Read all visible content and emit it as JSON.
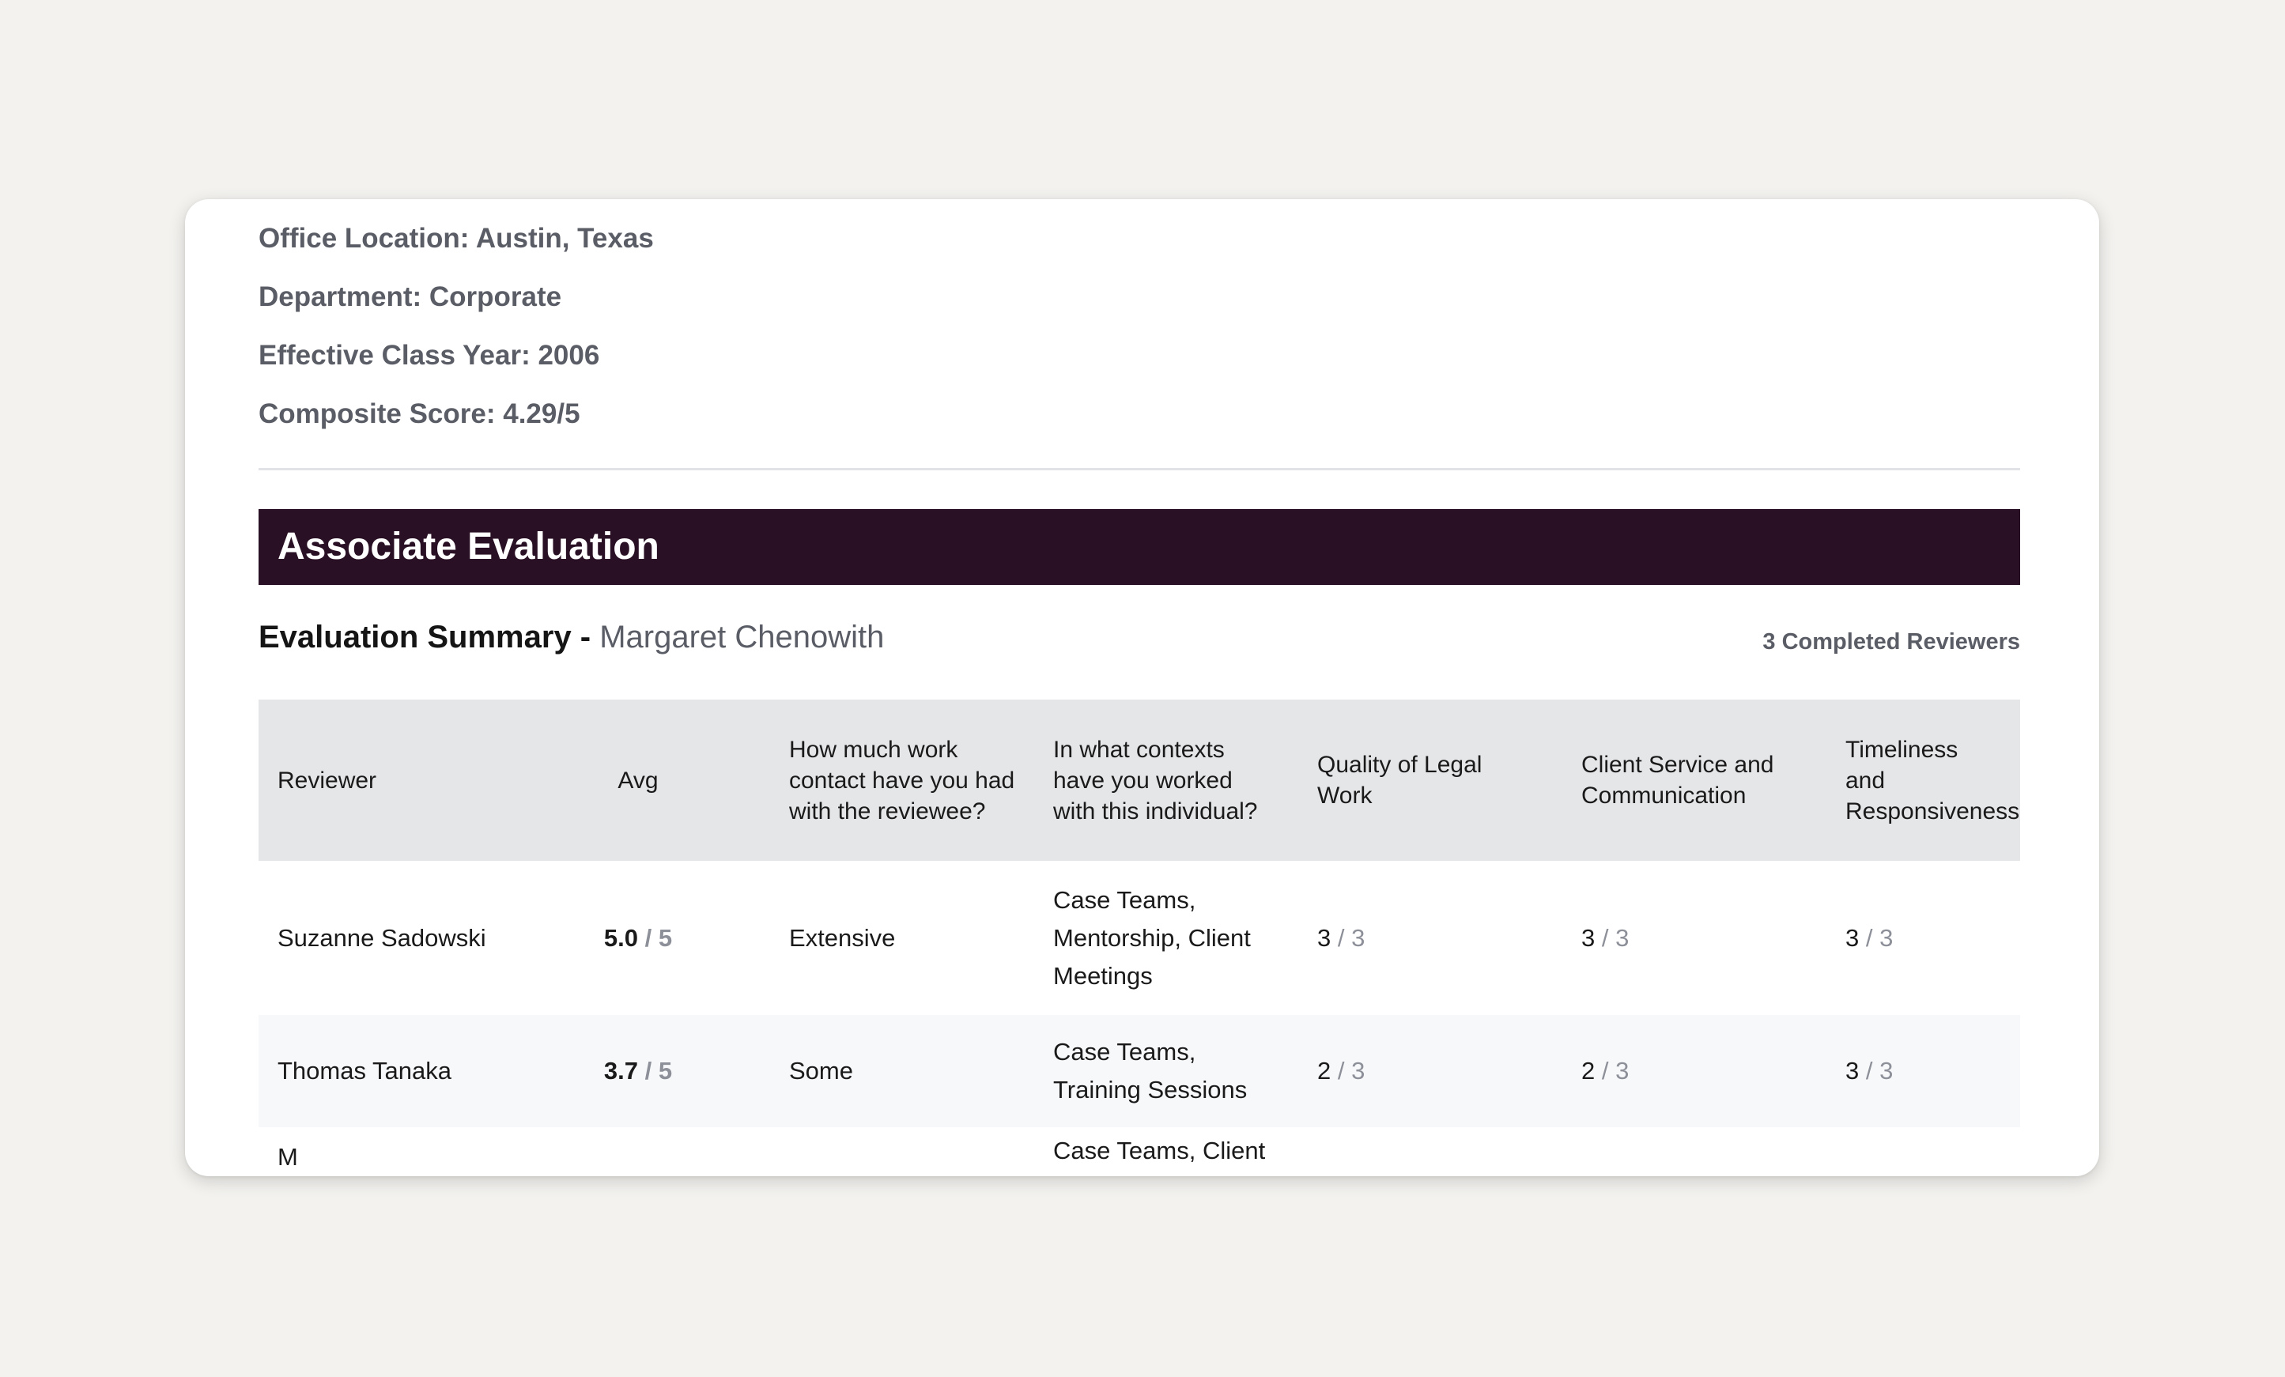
{
  "profile": {
    "office_location": "Office Location: Austin, Texas",
    "department": "Department: Corporate",
    "class_year": "Effective Class Year: 2006",
    "composite_score": "Composite Score: 4.29/5"
  },
  "banner": {
    "title": "Associate Evaluation"
  },
  "summary": {
    "label": "Evaluation Summary",
    "separator": " - ",
    "name": "Margaret Chenowith",
    "reviewers_count": "3 Completed Reviewers"
  },
  "table": {
    "headers": {
      "reviewer": "Reviewer",
      "avg": "Avg",
      "contact": "How much work contact have you had with the reviewee?",
      "contexts": "In what contexts have you worked with this individual?",
      "quality": "Quality of Legal Work",
      "client_service": "Client Service and Communication",
      "timeliness": "Timeliness and Responsiveness"
    },
    "rows": [
      {
        "reviewer": "Suzanne Sadowski",
        "avg": "5.0",
        "avg_max": " / 5",
        "contact": "Extensive",
        "contexts": "Case Teams, Mentorship, Client Meetings",
        "quality": "3",
        "quality_max": " / 3",
        "client_service": "3",
        "client_service_max": " / 3",
        "timeliness": "3",
        "timeliness_max": " / 3"
      },
      {
        "reviewer": "Thomas Tanaka",
        "avg": "3.7",
        "avg_max": " / 5",
        "contact": "Some",
        "contexts": "Case Teams, Training Sessions",
        "quality": "2",
        "quality_max": " / 3",
        "client_service": "2",
        "client_service_max": " / 3",
        "timeliness": "3",
        "timeliness_max": " / 3"
      },
      {
        "reviewer": "M",
        "contexts": "Case Teams, Client"
      }
    ]
  },
  "colors": {
    "banner_bg": "#2a1024",
    "header_bg": "#e5e6e8",
    "muted_text": "#5a5d66",
    "score_max": "#8d9099"
  }
}
